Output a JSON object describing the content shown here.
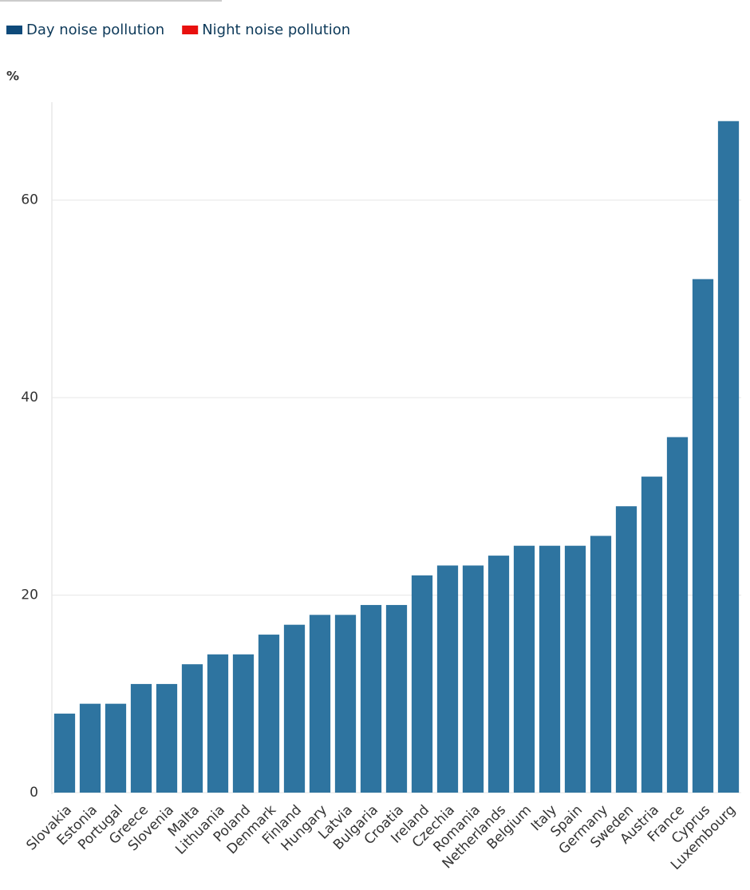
{
  "chart_data": {
    "type": "bar",
    "y_label": "%",
    "categories": [
      "Slovakia",
      "Estonia",
      "Portugal",
      "Greece",
      "Slovenia",
      "Malta",
      "Lithuania",
      "Poland",
      "Denmark",
      "Finland",
      "Hungary",
      "Latvia",
      "Bulgaria",
      "Croatia",
      "Ireland",
      "Czechia",
      "Romania",
      "Netherlands",
      "Belgium",
      "Italy",
      "Spain",
      "Germany",
      "Sweden",
      "Austria",
      "France",
      "Cyprus",
      "Luxembourg"
    ],
    "series": [
      {
        "name": "Day noise pollution",
        "color": "#2e74a0",
        "legend_color": "#0e4a7a",
        "values": [
          8,
          9,
          9,
          11,
          11,
          13,
          14,
          14,
          16,
          17,
          18,
          18,
          19,
          19,
          22,
          23,
          23,
          24,
          25,
          25,
          25,
          26,
          29,
          32,
          36,
          52,
          68
        ]
      },
      {
        "name": "Night noise pollution",
        "color": "#e8100e",
        "legend_color": "#e8100e",
        "values": [
          null,
          null,
          null,
          null,
          null,
          null,
          null,
          null,
          null,
          null,
          null,
          null,
          null,
          null,
          null,
          null,
          null,
          null,
          null,
          null,
          null,
          null,
          null,
          null,
          null,
          null,
          null
        ]
      }
    ],
    "ylim": [
      0,
      70
    ],
    "yticks": [
      0,
      20,
      40,
      60
    ],
    "grid": true
  }
}
